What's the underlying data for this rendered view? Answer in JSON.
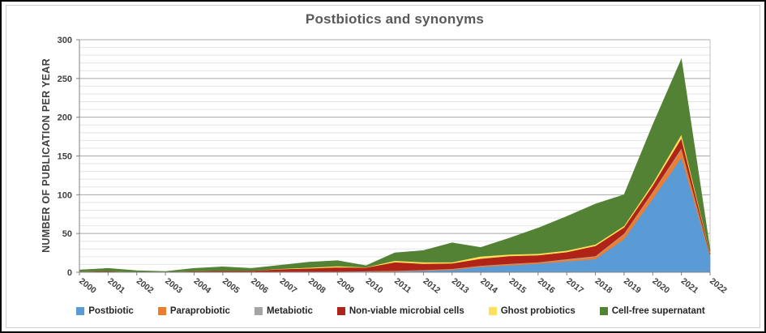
{
  "title": "Postbiotics and synonyms",
  "y_axis_title": "NUMBER OF PUBLICATION PER YEAR",
  "axis": {
    "y_ticks": [
      0,
      50,
      100,
      150,
      200,
      250,
      300
    ]
  },
  "chart_data": {
    "type": "area",
    "stacked": true,
    "title": "Postbiotics and synonyms",
    "xlabel": "",
    "ylabel": "NUMBER OF PUBLICATION PER YEAR",
    "ylim": [
      0,
      300
    ],
    "y_major_step": 50,
    "y_minor_step": 10,
    "grid": true,
    "legend_position": "bottom",
    "x": [
      "2000",
      "2001",
      "2002",
      "2003",
      "2004",
      "2005",
      "2006",
      "2007",
      "2008",
      "2009",
      "2010",
      "2011",
      "2012",
      "2013",
      "2014",
      "2015",
      "2016",
      "2017",
      "2018",
      "2019",
      "2020",
      "2021",
      "2022"
    ],
    "series": [
      {
        "name": "Postbiotic",
        "color": "#5B9BD5",
        "values": [
          0,
          0,
          0,
          0,
          0,
          0,
          0,
          0,
          0,
          0,
          0.5,
          1,
          2,
          3,
          7,
          9,
          11,
          14,
          17,
          43,
          95,
          148,
          21
        ]
      },
      {
        "name": "Paraprobiotic",
        "color": "#ED7D31",
        "values": [
          0,
          0,
          0,
          0,
          0,
          0,
          0,
          0.5,
          0.5,
          0.5,
          0.5,
          0.5,
          0.5,
          1,
          1,
          1.5,
          1.5,
          2,
          3,
          6,
          8,
          10,
          1.5
        ]
      },
      {
        "name": "Metabiotic",
        "color": "#A5A5A5",
        "values": [
          0,
          0.5,
          0,
          0,
          0.5,
          0.5,
          0.5,
          0.5,
          0.5,
          0.5,
          0.5,
          0.5,
          0.5,
          0.5,
          0.5,
          0.5,
          0.5,
          1,
          1,
          1,
          1,
          2,
          0.5
        ]
      },
      {
        "name": "Non-viable microbial cells",
        "color": "#B02418",
        "values": [
          1,
          1,
          0.5,
          0.5,
          1,
          1.5,
          1.5,
          3,
          4,
          5.5,
          4.5,
          11,
          8,
          7,
          9,
          10,
          9,
          9,
          13,
          8,
          8,
          13,
          2
        ]
      },
      {
        "name": "Ghost probiotics",
        "color": "#FFE05A",
        "values": [
          0,
          0,
          0,
          0,
          0,
          0,
          0,
          0.5,
          1,
          1.5,
          0.5,
          2,
          2,
          1.5,
          3,
          2,
          2,
          2,
          2,
          2,
          3,
          5,
          1
        ]
      },
      {
        "name": "Cell-free supernatant",
        "color": "#548235",
        "values": [
          2,
          3.5,
          1.5,
          0.5,
          3.5,
          5,
          3,
          4.5,
          7,
          7,
          2,
          10,
          15,
          25,
          11.5,
          21,
          33,
          44,
          52,
          40,
          75,
          97,
          3
        ]
      }
    ]
  },
  "colors": {
    "title_text": "#595959",
    "axis_text": "#404040",
    "legend_text": "#262626",
    "minor_gridline": "#e4e4e4",
    "major_gridline": "#a8a8a8",
    "axis_line": "#808080",
    "plot_border": "#bfbfbf",
    "frame_border": "#000000"
  }
}
